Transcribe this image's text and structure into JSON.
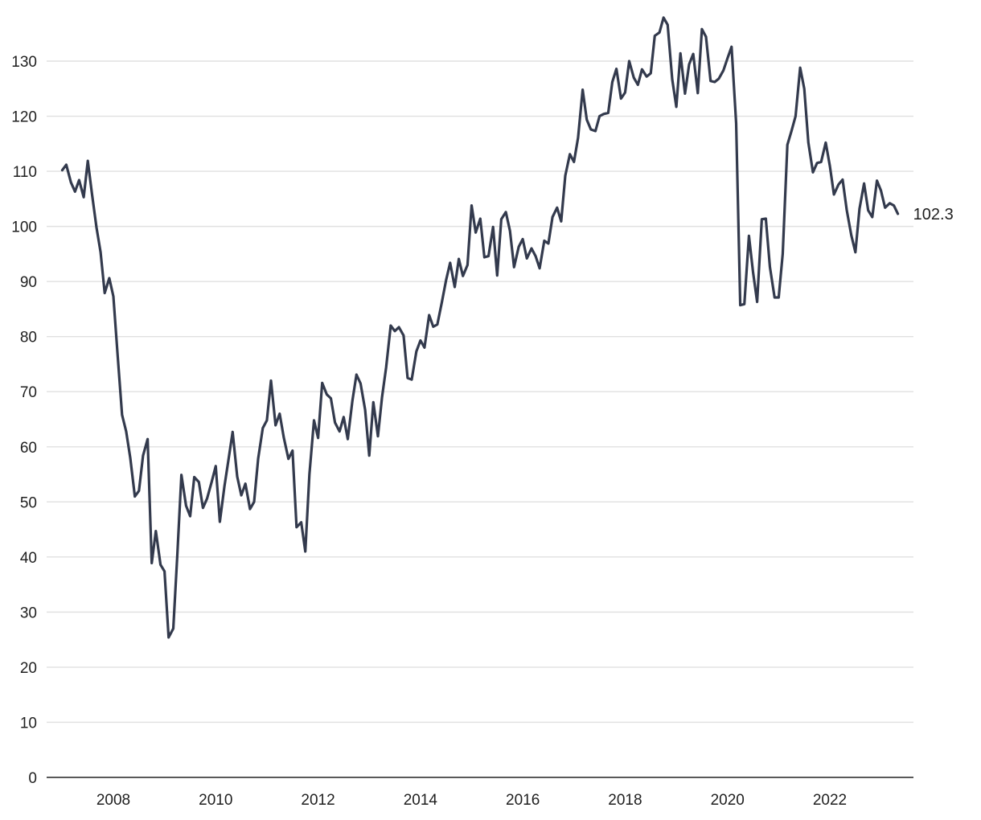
{
  "chart_data": {
    "type": "line",
    "title": "",
    "xlabel": "",
    "ylabel": "",
    "ylim": [
      0,
      138
    ],
    "xlim": [
      2006.7,
      2023.6
    ],
    "y_ticks": [
      0,
      10,
      20,
      30,
      40,
      50,
      60,
      70,
      80,
      90,
      100,
      110,
      120,
      130
    ],
    "x_ticks": [
      2008,
      2010,
      2012,
      2014,
      2016,
      2018,
      2020,
      2022
    ],
    "grid": "horizontal",
    "legend": "none",
    "line_color": "#333a4d",
    "end_label": "102.3",
    "series": [
      {
        "x": [
          2007.0,
          2007.08,
          2007.17,
          2007.25,
          2007.33,
          2007.42,
          2007.5,
          2007.58,
          2007.67,
          2007.75,
          2007.83,
          2007.92,
          2008.0,
          2008.08,
          2008.17,
          2008.25,
          2008.33,
          2008.42,
          2008.5,
          2008.58,
          2008.67,
          2008.75,
          2008.83,
          2008.92,
          2009.0,
          2009.08,
          2009.17,
          2009.25,
          2009.33,
          2009.42,
          2009.5,
          2009.58,
          2009.67,
          2009.75,
          2009.83,
          2009.92,
          2010.0,
          2010.08,
          2010.17,
          2010.25,
          2010.33,
          2010.42,
          2010.5,
          2010.58,
          2010.67,
          2010.75,
          2010.83,
          2010.92,
          2011.0,
          2011.08,
          2011.17,
          2011.25,
          2011.33,
          2011.42,
          2011.5,
          2011.58,
          2011.67,
          2011.75,
          2011.83,
          2011.92,
          2012.0,
          2012.08,
          2012.17,
          2012.25,
          2012.33,
          2012.42,
          2012.5,
          2012.58,
          2012.67,
          2012.75,
          2012.83,
          2012.92,
          2013.0,
          2013.08,
          2013.17,
          2013.25,
          2013.33,
          2013.42,
          2013.5,
          2013.58,
          2013.67,
          2013.75,
          2013.83,
          2013.92,
          2014.0,
          2014.08,
          2014.17,
          2014.25,
          2014.33,
          2014.42,
          2014.5,
          2014.58,
          2014.67,
          2014.75,
          2014.83,
          2014.92,
          2015.0,
          2015.08,
          2015.17,
          2015.25,
          2015.33,
          2015.42,
          2015.5,
          2015.58,
          2015.67,
          2015.75,
          2015.83,
          2015.92,
          2016.0,
          2016.08,
          2016.17,
          2016.25,
          2016.33,
          2016.42,
          2016.5,
          2016.58,
          2016.67,
          2016.75,
          2016.83,
          2016.92,
          2017.0,
          2017.08,
          2017.17,
          2017.25,
          2017.33,
          2017.42,
          2017.5,
          2017.58,
          2017.67,
          2017.75,
          2017.83,
          2017.92,
          2018.0,
          2018.08,
          2018.17,
          2018.25,
          2018.33,
          2018.42,
          2018.5,
          2018.58,
          2018.67,
          2018.75,
          2018.83,
          2018.92,
          2019.0,
          2019.08,
          2019.17,
          2019.25,
          2019.33,
          2019.42,
          2019.5,
          2019.58,
          2019.67,
          2019.75,
          2019.83,
          2019.92,
          2020.0,
          2020.08,
          2020.17,
          2020.25,
          2020.33,
          2020.42,
          2020.5,
          2020.58,
          2020.67,
          2020.75,
          2020.83,
          2020.92,
          2021.0,
          2021.08,
          2021.17,
          2021.25,
          2021.33,
          2021.42,
          2021.5,
          2021.58,
          2021.67,
          2021.75,
          2021.83,
          2021.92,
          2022.0,
          2022.08,
          2022.17,
          2022.25,
          2022.33,
          2022.42,
          2022.5,
          2022.58,
          2022.67,
          2022.75,
          2022.83,
          2022.92,
          2023.0,
          2023.08,
          2023.17,
          2023.25,
          2023.33
        ],
        "values": [
          110.2,
          111.2,
          108.0,
          106.3,
          108.4,
          105.3,
          111.9,
          106.0,
          99.8,
          95.3,
          87.9,
          90.6,
          87.3,
          77.0,
          65.8,
          62.8,
          58.0,
          51.0,
          52.0,
          58.4,
          61.4,
          38.9,
          44.7,
          38.6,
          37.4,
          25.4,
          27.0,
          40.6,
          54.9,
          49.3,
          47.4,
          54.5,
          53.6,
          48.9,
          50.6,
          53.6,
          56.5,
          46.4,
          52.8,
          57.7,
          62.7,
          54.6,
          51.2,
          53.3,
          48.7,
          50.0,
          57.9,
          63.4,
          64.8,
          72.0,
          63.9,
          66.0,
          61.7,
          57.8,
          59.3,
          45.4,
          46.3,
          41.0,
          55.0,
          64.8,
          61.6,
          71.6,
          69.5,
          68.8,
          64.4,
          62.8,
          65.4,
          61.4,
          68.3,
          73.1,
          71.5,
          66.7,
          58.4,
          68.1,
          61.9,
          69.0,
          74.4,
          82.0,
          81.0,
          81.7,
          80.2,
          72.5,
          72.2,
          77.3,
          79.3,
          78.0,
          83.9,
          81.8,
          82.2,
          86.3,
          90.2,
          93.4,
          89.0,
          94.1,
          91.0,
          93.0,
          103.8,
          98.9,
          101.4,
          94.4,
          94.6,
          99.9,
          91.1,
          101.3,
          102.6,
          99.2,
          92.6,
          96.3,
          97.7,
          94.2,
          96.0,
          94.6,
          92.4,
          97.4,
          96.9,
          101.7,
          103.4,
          100.9,
          109.2,
          113.1,
          111.7,
          116.1,
          124.8,
          119.4,
          117.6,
          117.3,
          120.0,
          120.4,
          120.6,
          126.2,
          128.6,
          123.2,
          124.3,
          130.0,
          127.0,
          125.7,
          128.5,
          127.2,
          127.8,
          134.6,
          135.2,
          137.9,
          136.6,
          126.7,
          121.7,
          131.4,
          124.1,
          129.4,
          131.3,
          124.2,
          135.8,
          134.4,
          126.4,
          126.2,
          126.8,
          128.3,
          130.5,
          132.6,
          118.7,
          85.7,
          85.9,
          98.3,
          91.7,
          86.3,
          101.3,
          101.4,
          92.6,
          87.1,
          87.1,
          95.0,
          114.8,
          117.3,
          120.0,
          128.8,
          125.0,
          115.2,
          109.8,
          111.5,
          111.7,
          115.2,
          111.0,
          105.8,
          107.6,
          108.5,
          103.0,
          98.4,
          95.3,
          103.2,
          107.8,
          102.9,
          101.7,
          108.3,
          106.5,
          103.4,
          104.2,
          103.8,
          102.3
        ]
      }
    ]
  }
}
